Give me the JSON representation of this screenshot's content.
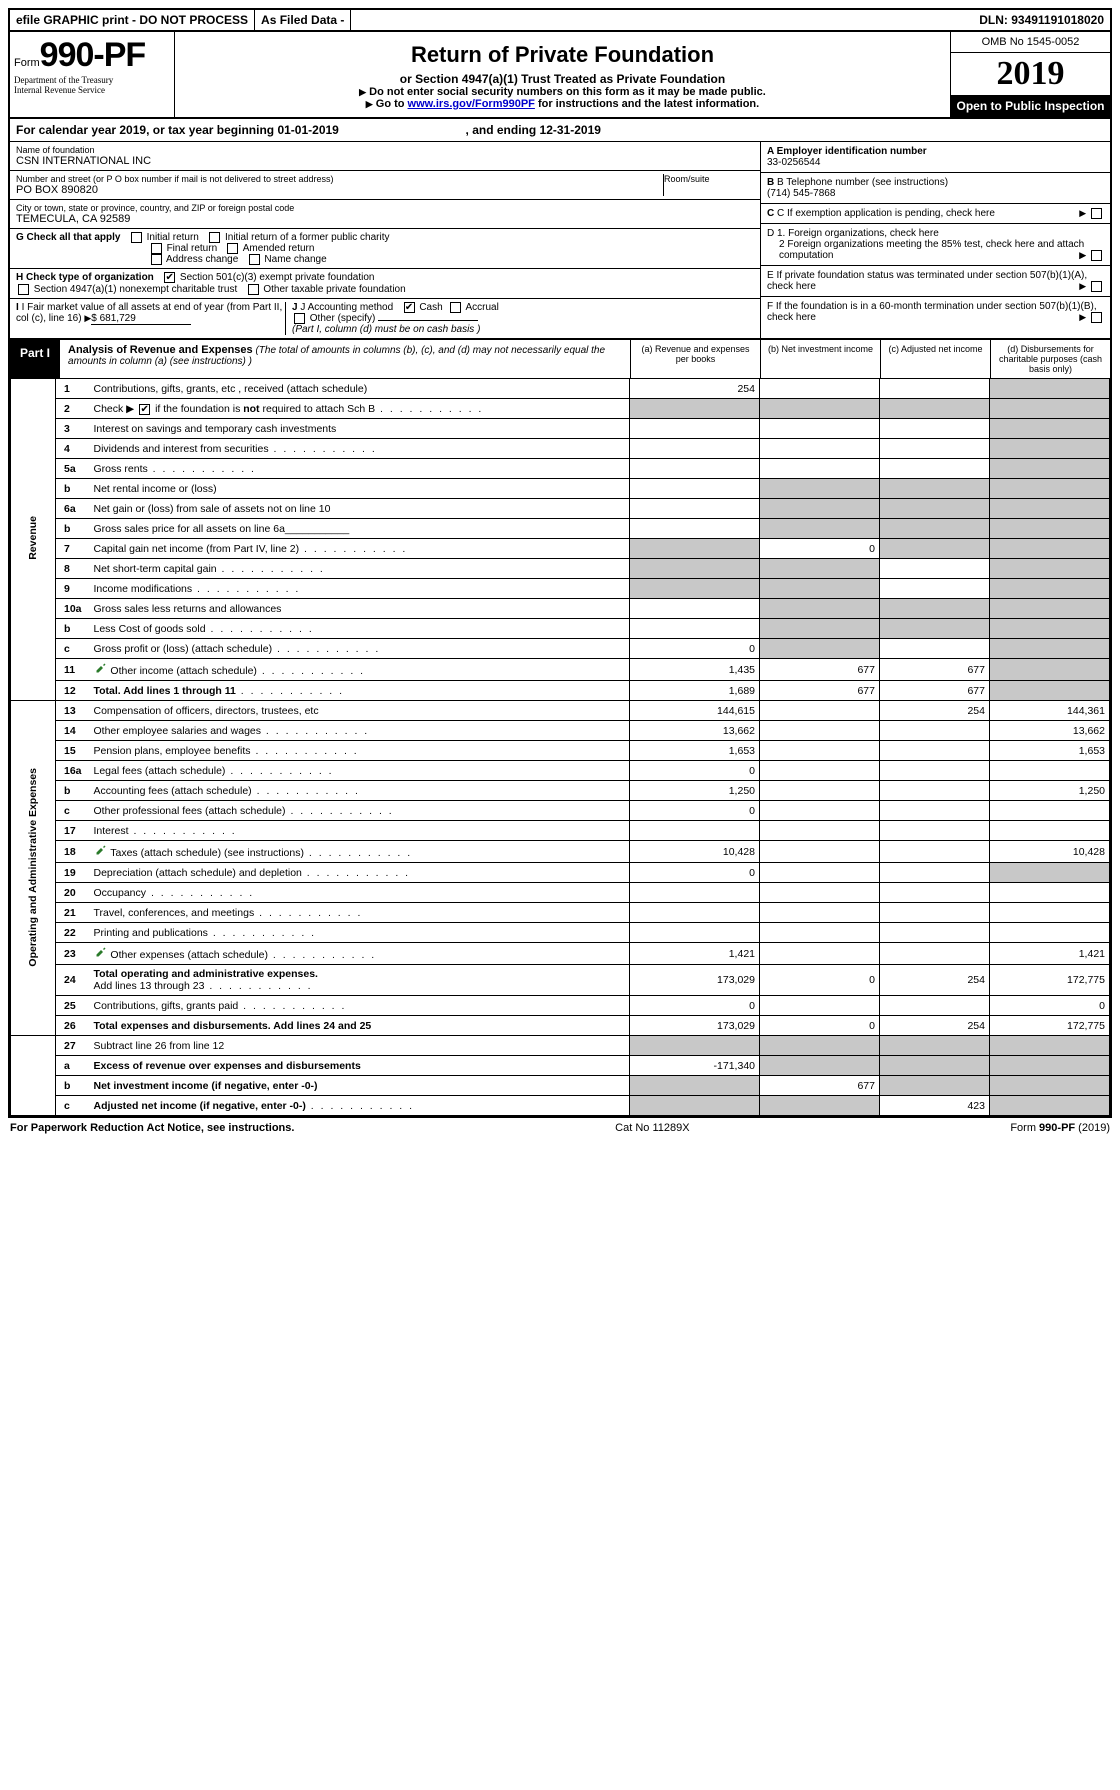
{
  "topbar": {
    "efile": "efile GRAPHIC print - DO NOT PROCESS",
    "asfiled": "As Filed Data -",
    "dln_label": "DLN:",
    "dln": "93491191018020"
  },
  "header": {
    "form_prefix": "Form",
    "form_num": "990-PF",
    "dept1": "Department of the Treasury",
    "dept2": "Internal Revenue Service",
    "title": "Return of Private Foundation",
    "subtitle": "or Section 4947(a)(1) Trust Treated as Private Foundation",
    "note1": "Do not enter social security numbers on this form as it may be made public.",
    "note2_pre": "Go to ",
    "note2_link": "www.irs.gov/Form990PF",
    "note2_post": " for instructions and the latest information.",
    "omb": "OMB No 1545-0052",
    "year": "2019",
    "inspect": "Open to Public Inspection"
  },
  "calyear": {
    "text_a": "For calendar year 2019, or tax year beginning ",
    "begin": "01-01-2019",
    "text_b": ", and ending ",
    "end": "12-31-2019"
  },
  "left": {
    "name_lbl": "Name of foundation",
    "name": "CSN INTERNATIONAL INC",
    "addr_lbl": "Number and street (or P O  box number if mail is not delivered to street address)",
    "addr": "PO BOX 890820",
    "room_lbl": "Room/suite",
    "city_lbl": "City or town, state or province, country, and ZIP or foreign postal code",
    "city": "TEMECULA, CA  92589",
    "g_lbl": "G Check all that apply",
    "g_opts": [
      "Initial return",
      "Initial return of a former public charity",
      "Final return",
      "Amended return",
      "Address change",
      "Name change"
    ],
    "h_lbl": "H Check type of organization",
    "h_opts": [
      "Section 501(c)(3) exempt private foundation",
      "Section 4947(a)(1) nonexempt charitable trust",
      "Other taxable private foundation"
    ],
    "i_lbl": "I Fair market value of all assets at end of year (from Part II, col  (c), line 16)",
    "i_val": "$  681,729",
    "j_lbl": "J Accounting method",
    "j_opts": [
      "Cash",
      "Accrual",
      "Other (specify)"
    ],
    "j_note": "(Part I, column (d) must be on cash basis )"
  },
  "right": {
    "a_lbl": "A Employer identification number",
    "a_val": "33-0256544",
    "b_lbl": "B Telephone number (see instructions)",
    "b_val": "(714) 545-7868",
    "c_lbl": "C If exemption application is pending, check here",
    "d1": "D 1. Foreign organizations, check here",
    "d2": "2  Foreign organizations meeting the 85% test, check here and attach computation",
    "e": "E  If private foundation status was terminated under section 507(b)(1)(A), check here",
    "f": "F  If the foundation is in a 60-month termination under section 507(b)(1)(B), check here"
  },
  "part1": {
    "label": "Part I",
    "title": "Analysis of Revenue and Expenses",
    "title_note": "(The total of amounts in columns (b), (c), and (d) may not necessarily equal the amounts in column (a) (see instructions) )",
    "cols": {
      "a": "(a) Revenue and expenses per books",
      "b": "(b) Net investment income",
      "c": "(c) Adjusted net income",
      "d": "(d) Disbursements for charitable purposes (cash basis only)"
    }
  },
  "sections": {
    "revenue": "Revenue",
    "expenses": "Operating and Administrative Expenses"
  },
  "rows": [
    {
      "sec": "rev",
      "n": "1",
      "d": "shade",
      "a": "254",
      "b": "",
      "c": ""
    },
    {
      "sec": "rev",
      "n": "2",
      "d": "Check ▶ ☑ if the foundation is not required to attach Sch B",
      "plain": true
    },
    {
      "sec": "rev",
      "n": "3",
      "d": "Interest on savings and temporary cash investments"
    },
    {
      "sec": "rev",
      "n": "4",
      "d": "Dividends and interest from securities",
      "dots": true
    },
    {
      "sec": "rev",
      "n": "5a",
      "d": "Gross rents",
      "dots": true
    },
    {
      "sec": "rev",
      "n": "b",
      "d": "Net rental income or (loss)",
      "sub": true,
      "shade_bcd": true
    },
    {
      "sec": "rev",
      "n": "6a",
      "d": "Net gain or (loss) from sale of assets not on line 10",
      "shade_bcd": true
    },
    {
      "sec": "rev",
      "n": "b",
      "d": "Gross sales price for all assets on line 6a",
      "sub": true,
      "shade_bcd": true
    },
    {
      "sec": "rev",
      "n": "7",
      "d": "Capital gain net income (from Part IV, line 2)",
      "dots": true,
      "b": "0",
      "shade_a": true,
      "shade_cd": true
    },
    {
      "sec": "rev",
      "n": "8",
      "d": "Net short-term capital gain",
      "dots": true,
      "shade_ab": true,
      "shade_d": true
    },
    {
      "sec": "rev",
      "n": "9",
      "d": "Income modifications",
      "dots": true,
      "shade_ab": true,
      "shade_d": true
    },
    {
      "sec": "rev",
      "n": "10a",
      "d": "Gross sales less returns and allowances",
      "sub": true,
      "shade_bcd": true
    },
    {
      "sec": "rev",
      "n": "b",
      "d": "Less  Cost of goods sold",
      "dots": true,
      "sub": true,
      "shade_bcd": true
    },
    {
      "sec": "rev",
      "n": "c",
      "d": "Gross profit or (loss) (attach schedule)",
      "dots": true,
      "a": "0",
      "shade_b": true,
      "shade_d": true
    },
    {
      "sec": "rev",
      "n": "11",
      "d": "Other income (attach schedule)",
      "dots": true,
      "icon": true,
      "a": "1,435",
      "b": "677",
      "c": "677",
      "shade_d": true
    },
    {
      "sec": "rev",
      "n": "12",
      "d": "Total. Add lines 1 through 11",
      "dots": true,
      "bold": true,
      "a": "1,689",
      "b": "677",
      "c": "677",
      "shade_d": true
    },
    {
      "sec": "exp",
      "n": "13",
      "d": "144,361",
      "a": "144,615",
      "c": "254"
    },
    {
      "sec": "exp",
      "n": "14",
      "d": "13,662",
      "dots": true,
      "a": "13,662"
    },
    {
      "sec": "exp",
      "n": "15",
      "d": "1,653",
      "dots": true,
      "a": "1,653"
    },
    {
      "sec": "exp",
      "n": "16a",
      "d": "Legal fees (attach schedule)",
      "dots": true,
      "a": "0"
    },
    {
      "sec": "exp",
      "n": "b",
      "d": "1,250",
      "dots": true,
      "a": "1,250"
    },
    {
      "sec": "exp",
      "n": "c",
      "d": "Other professional fees (attach schedule)",
      "dots": true,
      "a": "0"
    },
    {
      "sec": "exp",
      "n": "17",
      "d": "Interest",
      "dots": true
    },
    {
      "sec": "exp",
      "n": "18",
      "d": "10,428",
      "dots": true,
      "icon": true,
      "a": "10,428"
    },
    {
      "sec": "exp",
      "n": "19",
      "d": "Depreciation (attach schedule) and depletion",
      "dots": true,
      "a": "0",
      "shade_d": true
    },
    {
      "sec": "exp",
      "n": "20",
      "d": "Occupancy",
      "dots": true
    },
    {
      "sec": "exp",
      "n": "21",
      "d": "Travel, conferences, and meetings",
      "dots": true
    },
    {
      "sec": "exp",
      "n": "22",
      "d": "Printing and publications",
      "dots": true
    },
    {
      "sec": "exp",
      "n": "23",
      "d": "1,421",
      "dots": true,
      "icon": true,
      "a": "1,421"
    },
    {
      "sec": "exp",
      "n": "24",
      "d": "172,775",
      "dots": true,
      "bold": true,
      "a": "173,029",
      "b": "0",
      "c": "254"
    },
    {
      "sec": "exp",
      "n": "25",
      "d": "0",
      "dots": true,
      "a": "0"
    },
    {
      "sec": "exp",
      "n": "26",
      "d": "172,775",
      "bold": true,
      "a": "173,029",
      "b": "0",
      "c": "254"
    },
    {
      "sec": "ftr",
      "n": "27",
      "d": "Subtract line 26 from line 12"
    },
    {
      "sec": "ftr",
      "n": "a",
      "d": "Excess of revenue over expenses and disbursements",
      "bold": true,
      "a": "-171,340",
      "shade_bcd": true
    },
    {
      "sec": "ftr",
      "n": "b",
      "d": "Net investment income (if negative, enter -0-)",
      "bold": true,
      "b": "677",
      "shade_a": true,
      "shade_cd": true
    },
    {
      "sec": "ftr",
      "n": "c",
      "d": "Adjusted net income (if negative, enter -0-)",
      "dots": true,
      "bold": true,
      "c": "423",
      "shade_ab": true,
      "shade_d": true
    }
  ],
  "footer": {
    "left": "For Paperwork Reduction Act Notice, see instructions.",
    "mid": "Cat  No  11289X",
    "right": "Form 990-PF (2019)"
  },
  "colors": {
    "shade": "#c8c8c8",
    "link": "#0000cc",
    "pen": "#2a7a2a"
  }
}
